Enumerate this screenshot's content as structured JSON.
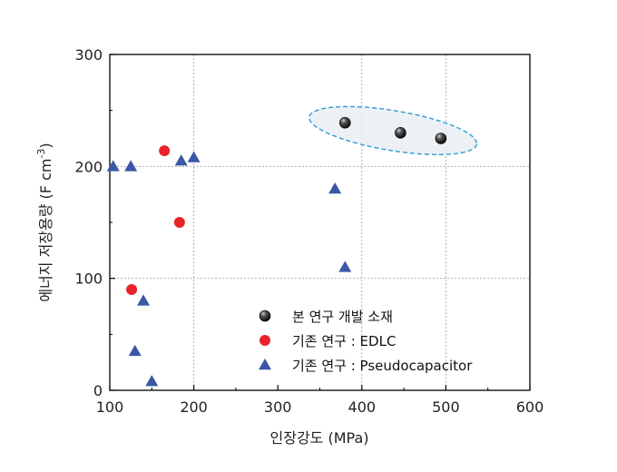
{
  "chart_data": {
    "type": "scatter",
    "xlabel": "인장강도 (MPa)",
    "ylabel": "에너지 저장용량 (F cm",
    "ylabel_sup": "-3",
    "ylabel_close": ")",
    "xlim": [
      100,
      600
    ],
    "ylim": [
      0,
      300
    ],
    "xticks": [
      100,
      200,
      300,
      400,
      500,
      600
    ],
    "yticks": [
      0,
      100,
      200,
      300
    ],
    "grid": "dotted, at x=200,400,500 and y=100,200",
    "legend_position": "lower-center",
    "series": [
      {
        "name": "본 연구 개발 소재",
        "marker": "sphere",
        "color": "#1a1a1a",
        "points": [
          [
            380,
            239
          ],
          [
            446,
            230
          ],
          [
            494,
            225
          ]
        ]
      },
      {
        "name": "기존 연구 : EDLC",
        "marker": "circle",
        "color": "#e8232a",
        "points": [
          [
            165,
            214
          ],
          [
            183,
            150
          ],
          [
            126,
            90
          ]
        ]
      },
      {
        "name": "기존 연구 : Pseudocapacitor",
        "marker": "triangle",
        "color": "#3b57a6",
        "points": [
          [
            104,
            200
          ],
          [
            125,
            200
          ],
          [
            185,
            205
          ],
          [
            200,
            208
          ],
          [
            368,
            180
          ],
          [
            380,
            110
          ],
          [
            140,
            80
          ],
          [
            130,
            35
          ],
          [
            150,
            8
          ]
        ]
      }
    ],
    "highlight_ellipse_around_series": 0
  }
}
